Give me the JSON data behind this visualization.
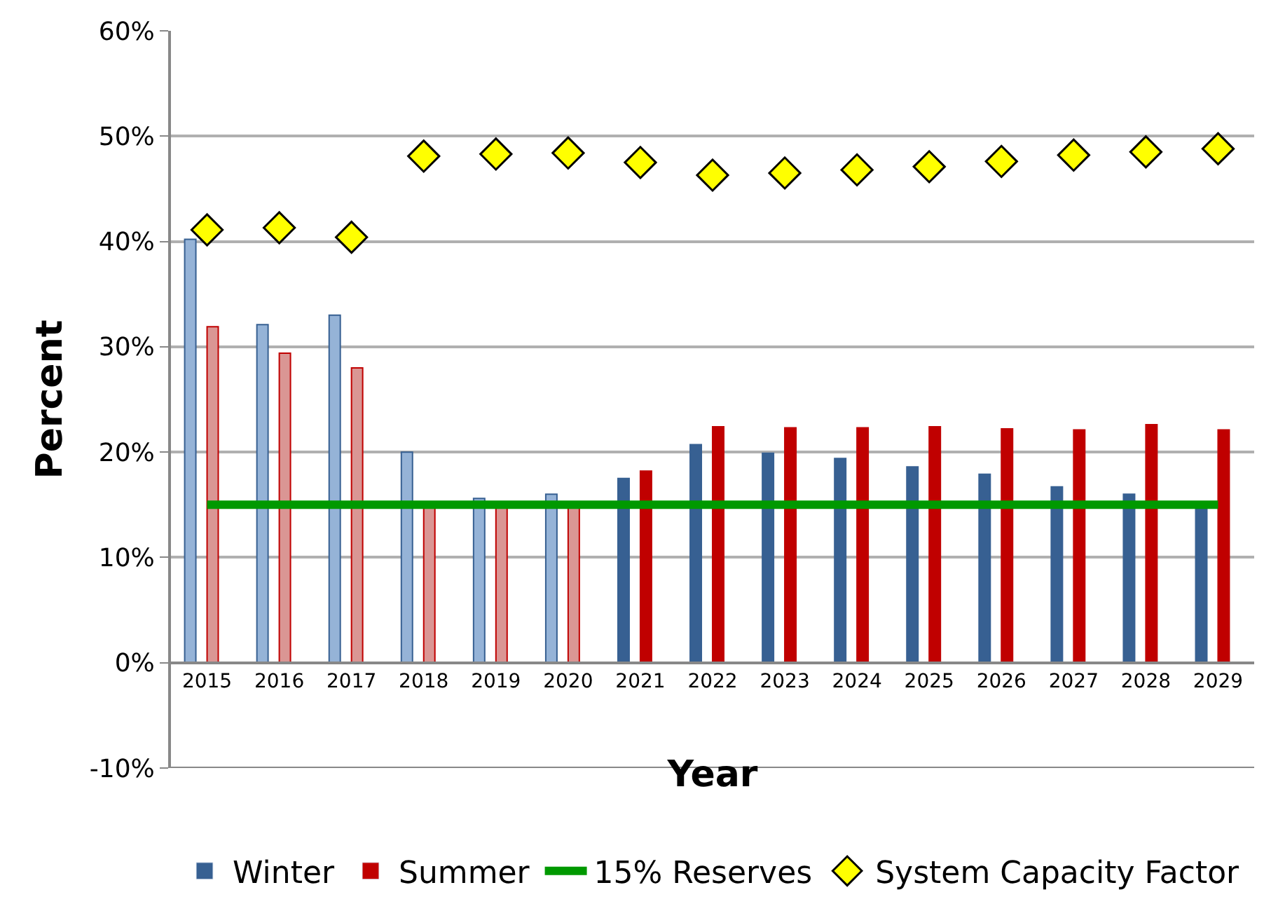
{
  "chart_data": {
    "type": "bar",
    "xlabel": "Year",
    "ylabel": "Percent",
    "categories": [
      "2015",
      "2016",
      "2017",
      "2018",
      "2019",
      "2020",
      "2021",
      "2022",
      "2023",
      "2024",
      "2025",
      "2026",
      "2027",
      "2028",
      "2029"
    ],
    "series": [
      {
        "name": "Winter",
        "color": "#376092",
        "colors": [
          "#95b3d7",
          "#95b3d7",
          "#95b3d7",
          "#95b3d7",
          "#95b3d7",
          "#95b3d7",
          "#376092",
          "#376092",
          "#376092",
          "#376092",
          "#376092",
          "#376092",
          "#376092",
          "#376092",
          "#376092"
        ],
        "values": [
          40.2,
          32.1,
          33.0,
          20.0,
          15.6,
          16.0,
          17.5,
          20.7,
          19.9,
          19.4,
          18.6,
          17.9,
          16.7,
          16.0,
          15.0
        ]
      },
      {
        "name": "Summer",
        "color": "#c00000",
        "colors": [
          "#da9694",
          "#da9694",
          "#da9694",
          "#da9694",
          "#da9694",
          "#da9694",
          "#c00000",
          "#c00000",
          "#c00000",
          "#c00000",
          "#c00000",
          "#c00000",
          "#c00000",
          "#c00000",
          "#c00000"
        ],
        "values": [
          31.9,
          29.4,
          28.0,
          15.0,
          15.0,
          15.0,
          18.2,
          22.4,
          22.3,
          22.3,
          22.4,
          22.2,
          22.1,
          22.6,
          22.1
        ]
      },
      {
        "name": "15% Reserves",
        "type": "line",
        "color": "#009900",
        "marker": "none",
        "line_style": "solid",
        "values": [
          15,
          15,
          15,
          15,
          15,
          15,
          15,
          15,
          15,
          15,
          15,
          15,
          15,
          15,
          15
        ]
      },
      {
        "name": "System Capacity Factor",
        "type": "scatter",
        "color": "#ffff00",
        "marker": "diamond",
        "values": [
          41.1,
          41.3,
          40.4,
          48.1,
          48.3,
          48.4,
          47.5,
          46.3,
          46.5,
          46.8,
          47.1,
          47.6,
          48.2,
          48.5,
          48.8
        ]
      }
    ],
    "ylim": [
      -10,
      60
    ],
    "yticks": [
      {
        "value": -10,
        "label": "-10%"
      },
      {
        "value": 0,
        "label": "0%"
      },
      {
        "value": 10,
        "label": "10%"
      },
      {
        "value": 20,
        "label": "20%"
      },
      {
        "value": 30,
        "label": "30%"
      },
      {
        "value": 40,
        "label": "40%"
      },
      {
        "value": 50,
        "label": "50%"
      },
      {
        "value": 60,
        "label": "60%"
      }
    ],
    "grid": "y",
    "legend": "bottom"
  }
}
